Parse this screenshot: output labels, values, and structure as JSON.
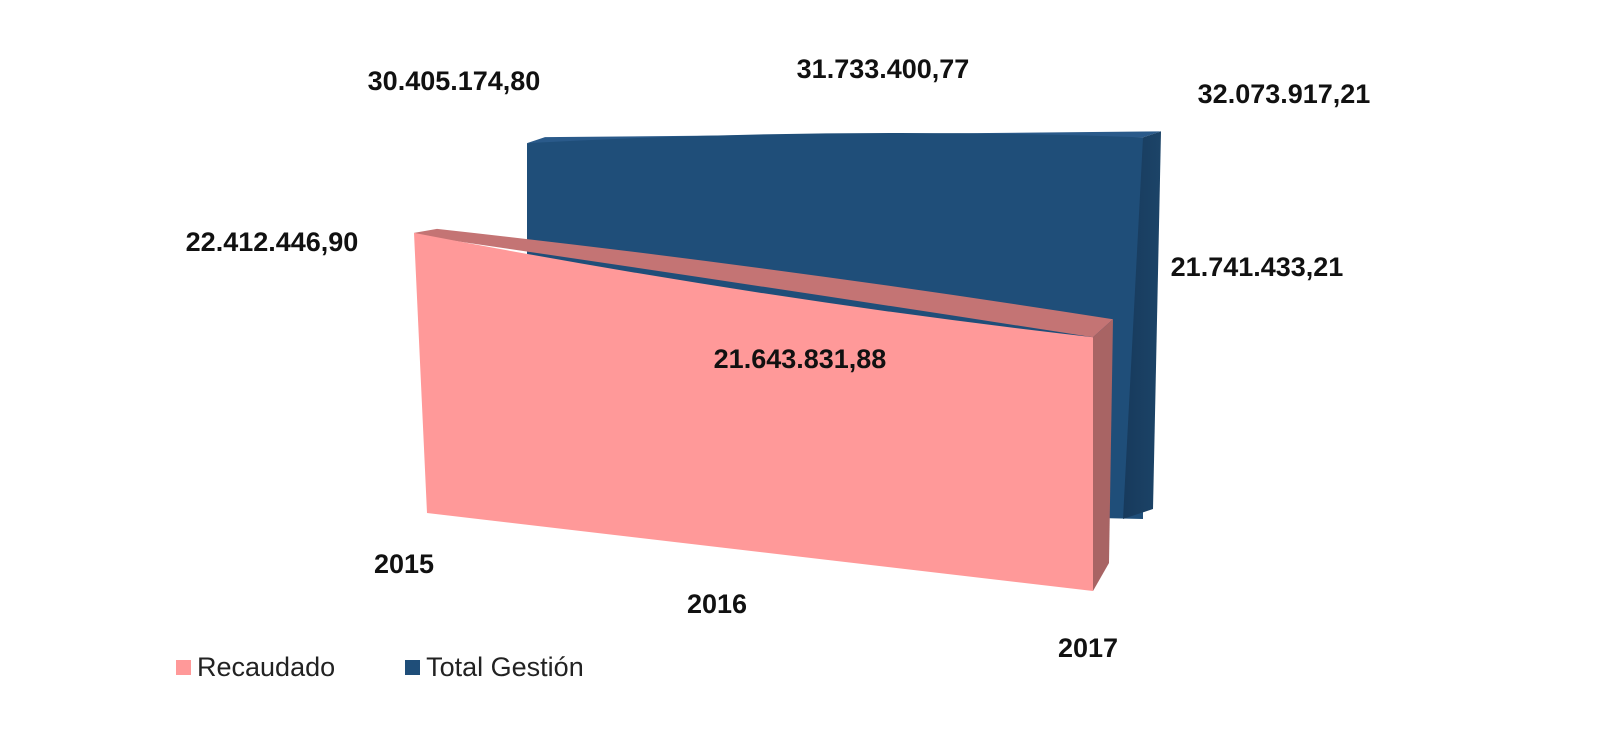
{
  "chart_data": {
    "type": "area",
    "categories": [
      "2015",
      "2016",
      "2017"
    ],
    "series": [
      {
        "name": "Recaudado",
        "values": [
          22412446.9,
          21643831.88,
          21741433.21
        ],
        "labels": [
          "22.412.446,90",
          "21.643.831,88",
          "21.741.433,21"
        ],
        "color": "#FF9999"
      },
      {
        "name": "Total Gestión",
        "values": [
          30405174.8,
          31733400.77,
          32073917.21
        ],
        "labels": [
          "30.405.174,80",
          "31.733.400,77",
          "32.073.917,21"
        ],
        "color": "#1F4E79"
      }
    ],
    "title": "",
    "xlabel": "",
    "ylabel": "",
    "grid": false,
    "legend": "bottom-left",
    "style": "3d"
  }
}
